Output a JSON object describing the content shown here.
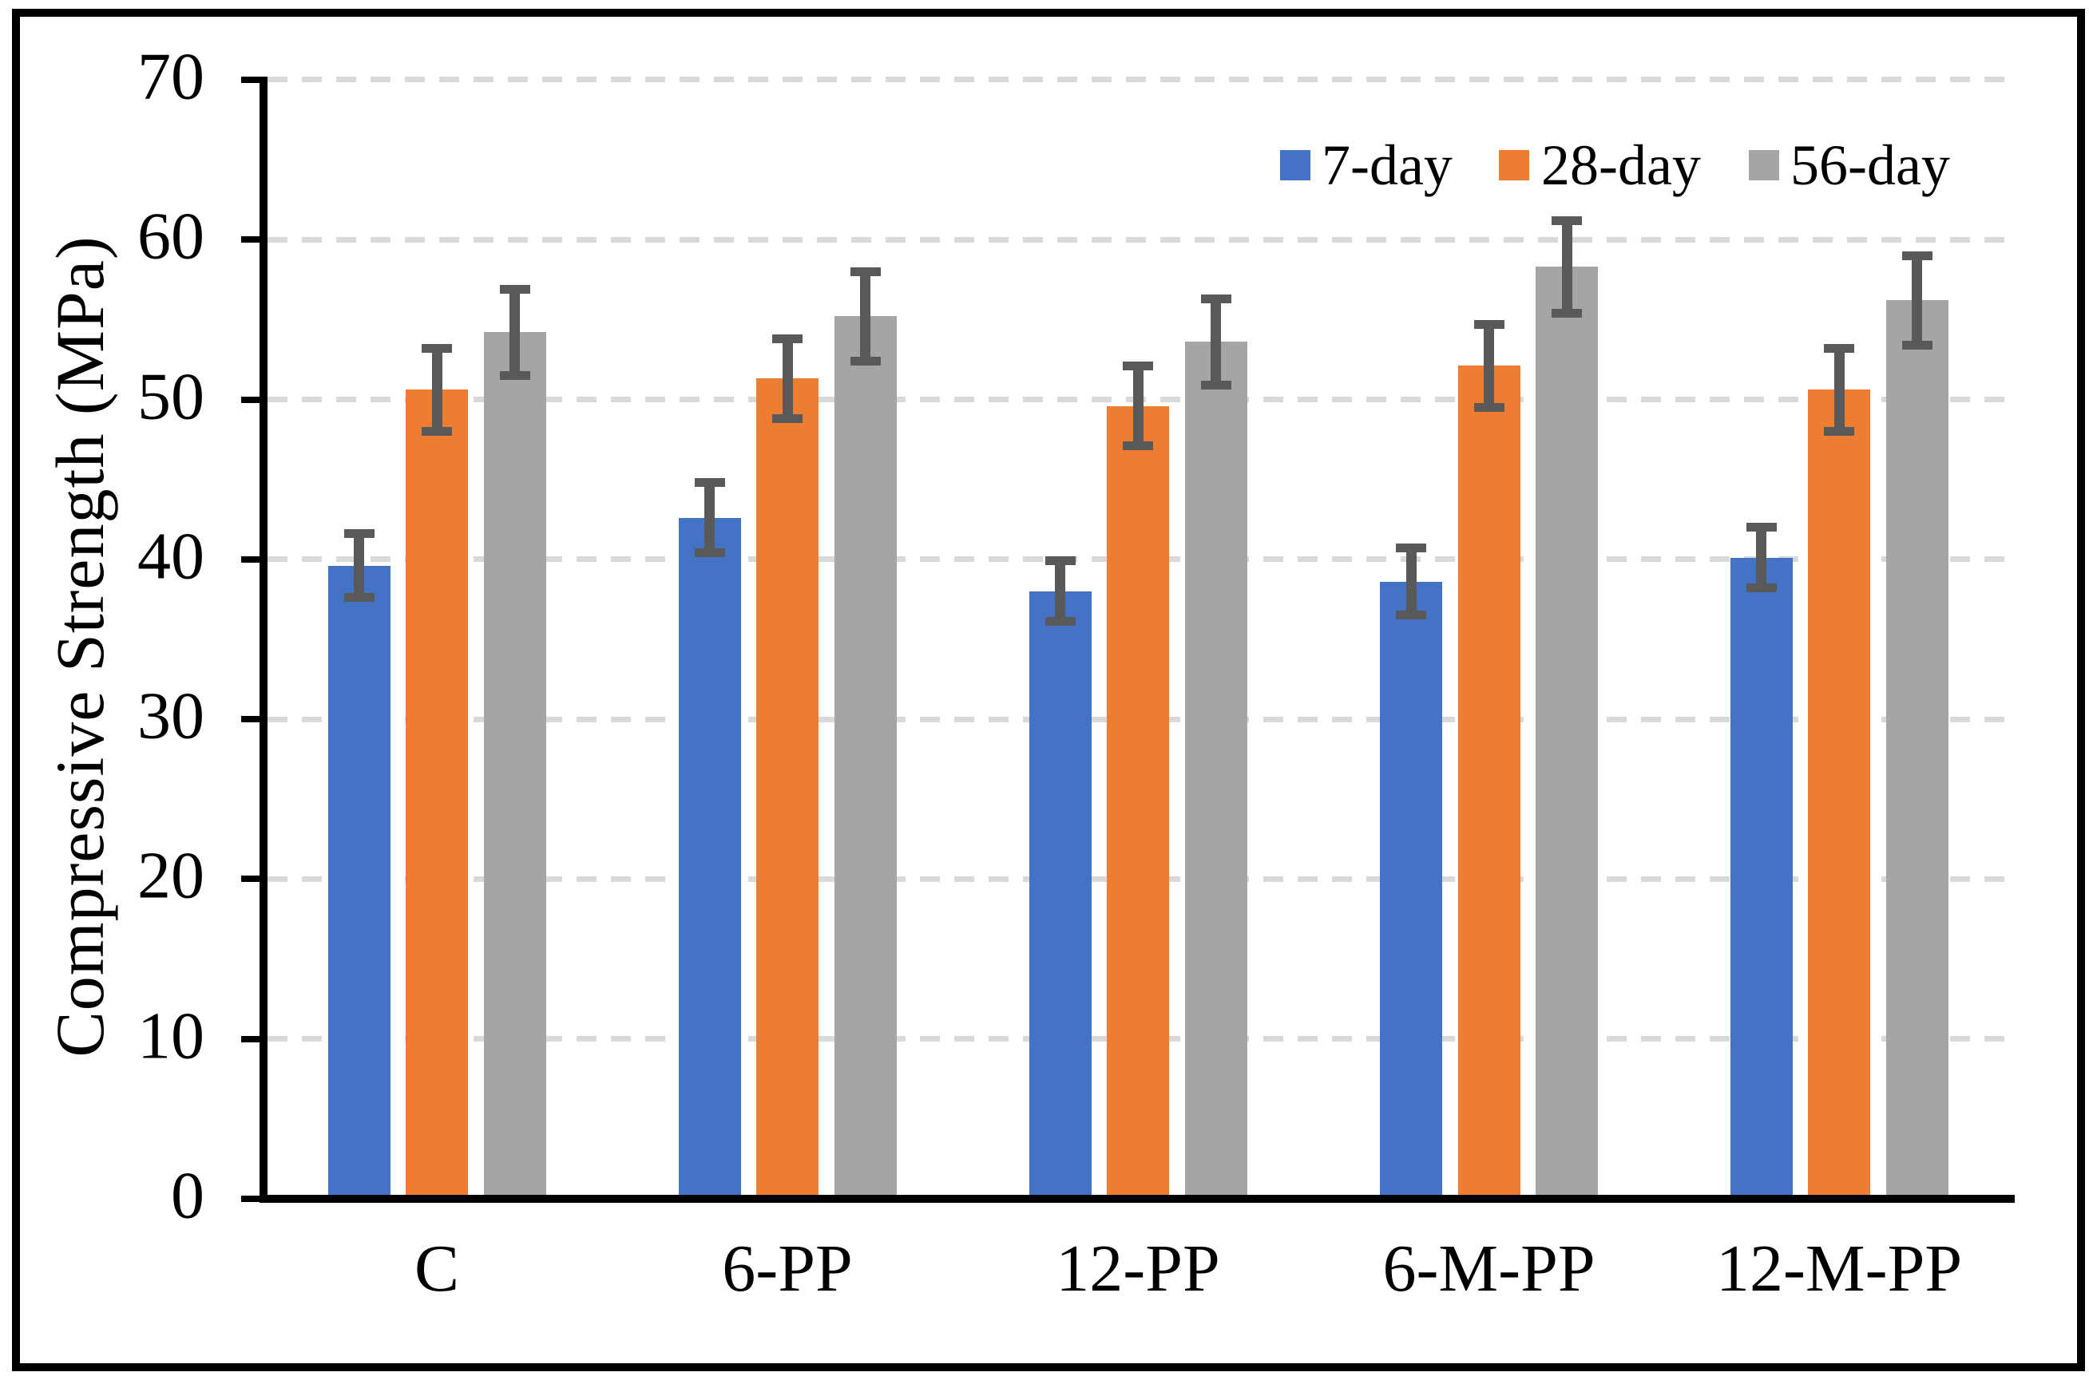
{
  "figure": {
    "background": "#FFFFFF",
    "border_color": "#000000"
  },
  "chart_data": {
    "type": "bar",
    "title": "",
    "xlabel": "",
    "ylabel": "Compressive Strength (MPa)",
    "ylim": [
      0,
      70
    ],
    "ytick_interval": 10,
    "yticks": [
      0,
      10,
      20,
      30,
      40,
      50,
      60,
      70
    ],
    "grid": "horizontal dashed gridlines",
    "gridline_color": "#D9D9D9",
    "axis_color": "#000000",
    "error_bar_color": "#595959",
    "legend_position": "top-right inside plot",
    "categories": [
      "C",
      "6-PP",
      "12-PP",
      "6-M-PP",
      "12-M-PP"
    ],
    "series": [
      {
        "name": "7-day",
        "color": "#4472C4",
        "values": [
          39.6,
          42.6,
          38.0,
          38.6,
          40.1
        ],
        "errors": [
          2.0,
          2.2,
          1.9,
          2.1,
          1.9
        ]
      },
      {
        "name": "28-day",
        "color": "#ED7D31",
        "values": [
          50.6,
          51.3,
          49.6,
          52.1,
          50.6
        ],
        "errors": [
          2.6,
          2.5,
          2.5,
          2.6,
          2.6
        ]
      },
      {
        "name": "56-day",
        "color": "#A5A5A5",
        "values": [
          54.2,
          55.2,
          53.6,
          58.3,
          56.2
        ],
        "errors": [
          2.7,
          2.8,
          2.7,
          2.9,
          2.8
        ]
      }
    ]
  }
}
